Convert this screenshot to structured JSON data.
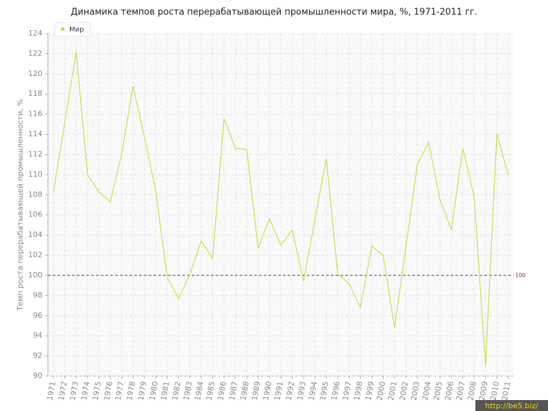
{
  "chart_data": {
    "type": "line",
    "title": "Динамика темпов роста перерабатывающей промышленности мира, %, 1971-2011 гг.",
    "y_label": "Темп роста перерабатывающей промышленности, %",
    "categories": [
      "1971",
      "1972",
      "1973",
      "1974",
      "1975",
      "1976",
      "1977",
      "1978",
      "1979",
      "1980",
      "1981",
      "1982",
      "1983",
      "1984",
      "1985",
      "1986",
      "1987",
      "1988",
      "1989",
      "1990",
      "1991",
      "1992",
      "1993",
      "1994",
      "1995",
      "1996",
      "1997",
      "1998",
      "1999",
      "2000",
      "2001",
      "2002",
      "2003",
      "2004",
      "2005",
      "2006",
      "2007",
      "2008",
      "2009",
      "2010",
      "2011"
    ],
    "series": [
      {
        "name": "Мир",
        "color": "#c3e04a",
        "values": [
          108.3,
          115.2,
          122.2,
          110.0,
          108.3,
          107.3,
          112.0,
          118.8,
          113.7,
          108.4,
          99.8,
          97.7,
          100.1,
          103.4,
          101.7,
          115.6,
          112.6,
          112.5,
          102.7,
          105.6,
          103.0,
          104.5,
          99.4,
          105.6,
          111.6,
          100.1,
          99.2,
          96.8,
          102.9,
          102.0,
          94.8,
          102.8,
          111.0,
          113.2,
          107.5,
          104.5,
          112.6,
          107.8,
          91.0,
          114.1,
          109.9
        ]
      }
    ],
    "ylim": [
      90,
      124
    ],
    "yticks": [
      90,
      92,
      94,
      96,
      98,
      100,
      102,
      104,
      106,
      108,
      110,
      112,
      114,
      116,
      118,
      120,
      122,
      124
    ],
    "reference_line": 100,
    "reference_color": "#8b1a3a",
    "grid": true,
    "legend": "top-left",
    "watermark": "http://be5.biz/"
  }
}
